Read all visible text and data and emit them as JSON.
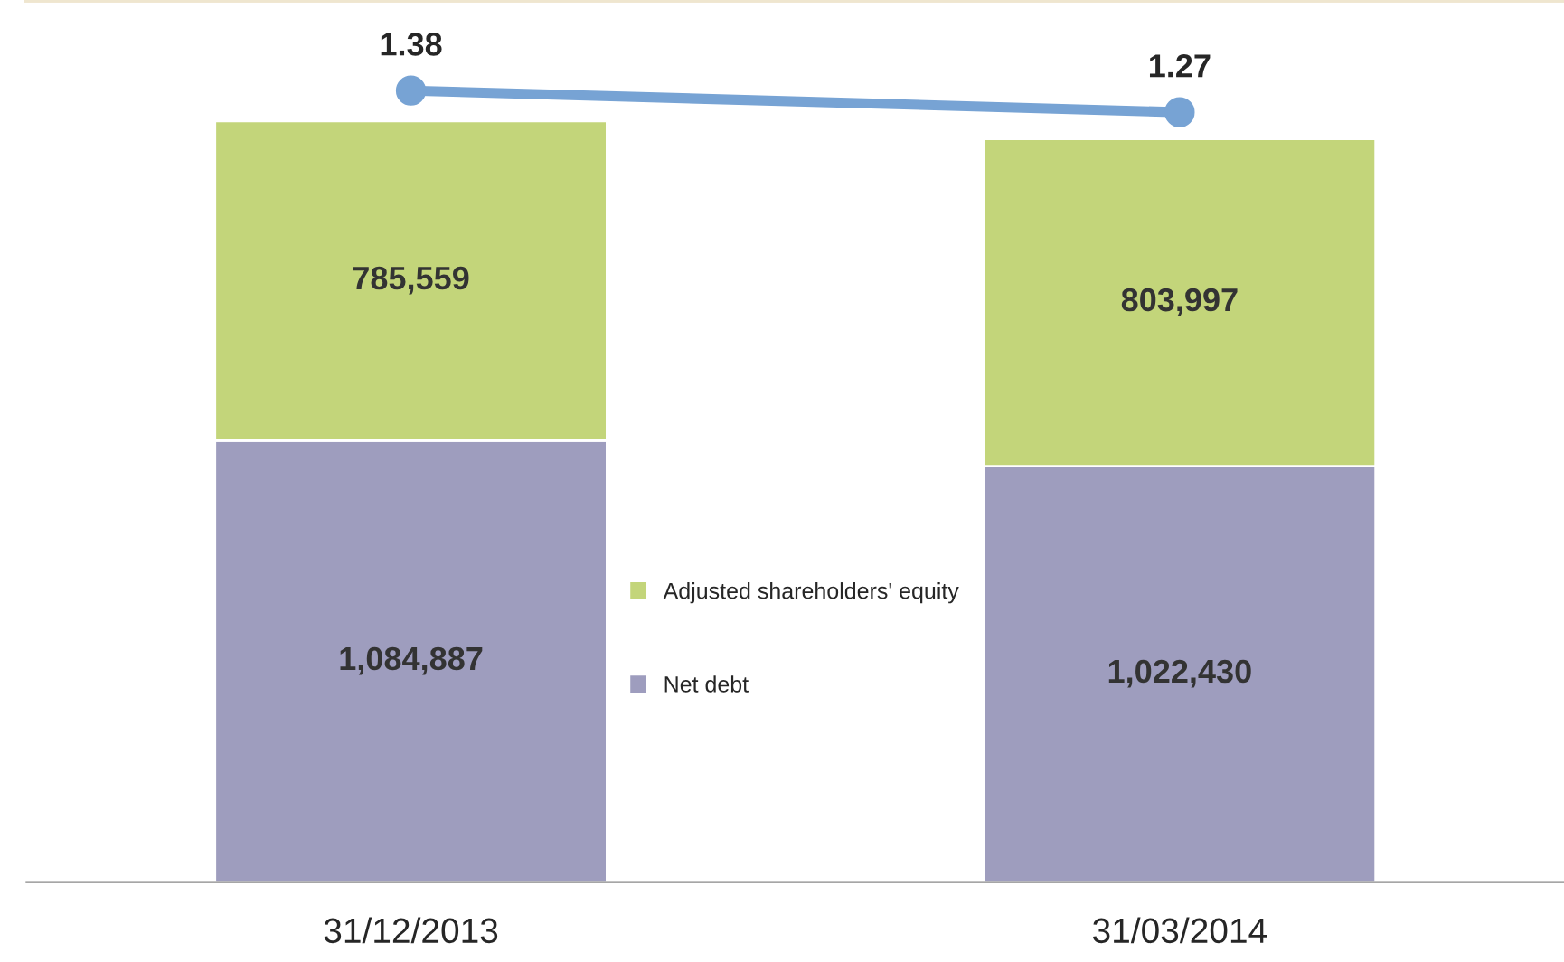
{
  "chart_data": {
    "type": "bar",
    "stacked": true,
    "categories": [
      "31/12/2013",
      "31/03/2014"
    ],
    "series": [
      {
        "name": "Net debt",
        "color": "#9e9dbe",
        "values": [
          1084887,
          1022430
        ],
        "value_labels": [
          "1,084,887",
          "1,022,430"
        ]
      },
      {
        "name": "Adjusted shareholders' equity",
        "color": "#c3d57a",
        "values": [
          785559,
          803997
        ],
        "value_labels": [
          "785,559",
          "803,997"
        ]
      },
      {
        "type": "line",
        "axis": "y2",
        "color": "#77a3d4",
        "marker": "circle",
        "values": [
          1.38,
          1.27
        ],
        "value_labels": [
          "1.38",
          "1.27"
        ]
      }
    ],
    "ylim": [
      0,
      2168000
    ],
    "y2lim": [
      -2.64,
      1.84
    ],
    "legend": "center",
    "grid": false
  }
}
